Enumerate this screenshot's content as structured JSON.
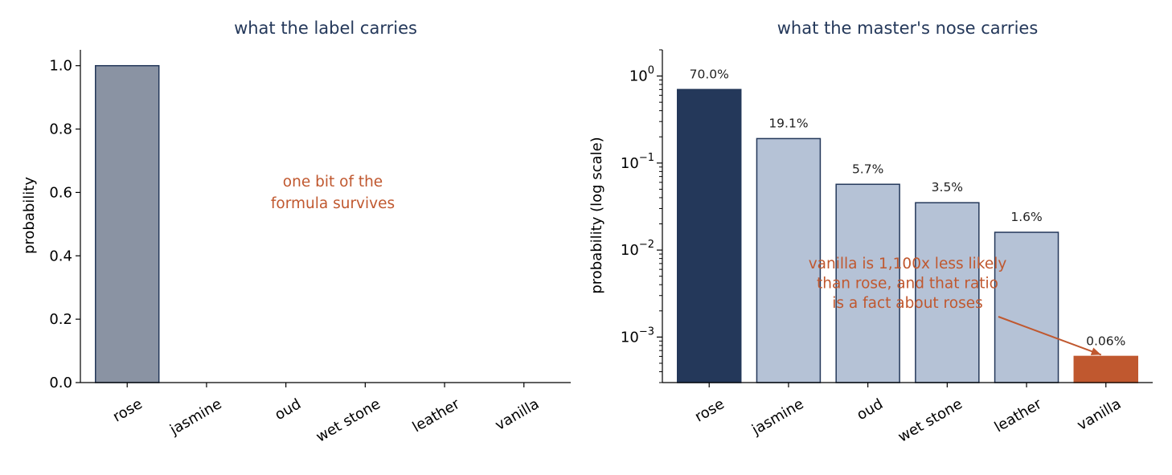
{
  "colors": {
    "title": "#24385a",
    "accent": "#c0582f",
    "left_bar": "#8a93a3",
    "right_top": "#24385a",
    "right_bar": "#b5c2d6",
    "edge": "#24385a"
  },
  "chart_data": [
    {
      "type": "bar",
      "title": "what the label carries",
      "xlabel": "",
      "ylabel": "probability",
      "ylim": [
        0,
        1.05
      ],
      "yticks": [
        "0.0",
        "0.2",
        "0.4",
        "0.6",
        "0.8",
        "1.0"
      ],
      "categories": [
        "rose",
        "jasmine",
        "oud",
        "wet stone",
        "leather",
        "vanilla"
      ],
      "values": [
        1.0,
        0,
        0,
        0,
        0,
        0
      ],
      "annotation": "one bit of the\nformula survives"
    },
    {
      "type": "bar",
      "title": "what the master's nose carries",
      "xlabel": "",
      "ylabel": "probability (log scale)",
      "yscale": "log",
      "ylim": [
        0.0003,
        2
      ],
      "yticks": [
        "10^0",
        "10^-1",
        "10^-2",
        "10^-3"
      ],
      "categories": [
        "rose",
        "jasmine",
        "oud",
        "wet stone",
        "leather",
        "vanilla"
      ],
      "values": [
        0.7,
        0.191,
        0.057,
        0.035,
        0.016,
        0.0006
      ],
      "data_labels": [
        "70.0%",
        "19.1%",
        "5.7%",
        "3.5%",
        "1.6%",
        "0.06%"
      ],
      "annotation": "vanilla is 1,100x less likely\nthan rose, and that ratio\nis a fact about roses"
    }
  ]
}
